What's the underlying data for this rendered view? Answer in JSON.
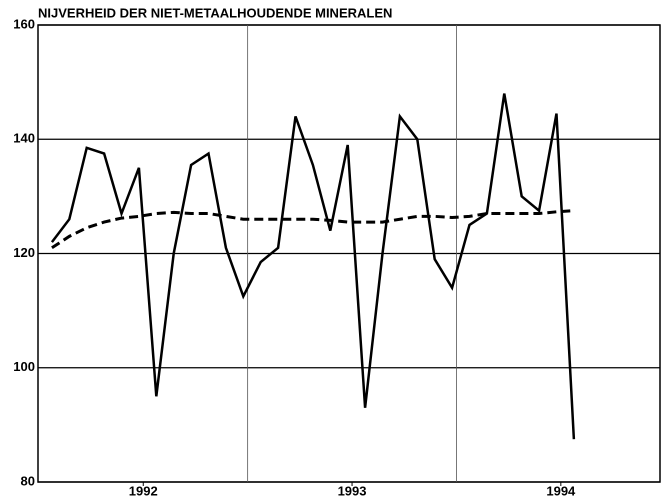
{
  "chart_data": {
    "type": "line",
    "title": "NIJVERHEID DER NIET-METAALHOUDENDE MINERALEN",
    "x": [
      0,
      1,
      2,
      3,
      4,
      5,
      6,
      7,
      8,
      9,
      10,
      11,
      12,
      13,
      14,
      15,
      16,
      17,
      18,
      19,
      20,
      21,
      22,
      23,
      24,
      25,
      26,
      27,
      28,
      29,
      30
    ],
    "series": [
      {
        "name": null,
        "color": "#000000",
        "dash": false,
        "values": [
          122,
          126,
          138.5,
          137.5,
          127,
          135,
          95,
          120,
          135.5,
          137.5,
          121,
          112.5,
          118.5,
          121,
          144,
          135.5,
          124,
          139,
          93,
          120,
          144,
          140,
          119,
          114,
          125,
          127,
          148,
          130,
          127.5,
          144.5,
          87.5
        ]
      },
      {
        "name": null,
        "color": "#000000",
        "dash": true,
        "values": [
          121,
          123,
          124.5,
          125.5,
          126.2,
          126.5,
          127,
          127.2,
          127,
          127,
          126.5,
          126,
          126,
          126,
          126,
          126,
          125.8,
          125.5,
          125.5,
          125.5,
          126,
          126.5,
          126.5,
          126.3,
          126.5,
          127,
          127,
          127,
          127,
          127.3,
          127.5
        ]
      }
    ],
    "xlim": [
      -0.8,
      34.95
    ],
    "xticks": [
      {
        "value": 5.25,
        "label": "1992"
      },
      {
        "value": 17.25,
        "label": "1993"
      },
      {
        "value": 29.25,
        "label": "1994"
      }
    ],
    "ylim": [
      80,
      160
    ],
    "yticks": [
      80,
      100,
      120,
      140,
      160
    ],
    "grid": true
  }
}
